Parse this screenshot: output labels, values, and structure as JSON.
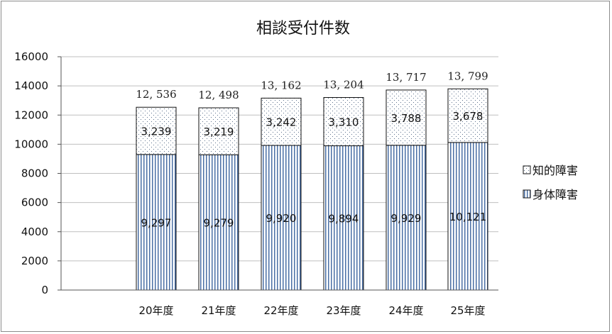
{
  "chart_data": {
    "type": "bar",
    "stacked": true,
    "title": "相談受付件数",
    "xlabel": "",
    "ylabel": "",
    "categories": [
      "20年度",
      "21年度",
      "22年度",
      "23年度",
      "24年度",
      "25年度"
    ],
    "series": [
      {
        "name": "身体障害",
        "values": [
          9297,
          9279,
          9920,
          9894,
          9929,
          10121
        ],
        "labels": [
          "9,297",
          "9,279",
          "9,920",
          "9,894",
          "9,929",
          "10,121"
        ],
        "pattern": "vertical-stripes",
        "color": "#4a6fa5"
      },
      {
        "name": "知的障害",
        "values": [
          3239,
          3219,
          3242,
          3310,
          3788,
          3678
        ],
        "labels": [
          "3,239",
          "3,219",
          "3,242",
          "3,310",
          "3,788",
          "3,678"
        ],
        "pattern": "dots",
        "color": "#5a6f8a"
      }
    ],
    "totals": [
      "12, 536",
      "12, 498",
      "13, 162",
      "13, 204",
      "13, 717",
      "13, 799"
    ],
    "yticks": [
      "0",
      "2000",
      "4000",
      "6000",
      "8000",
      "10000",
      "12000",
      "14000",
      "16000"
    ],
    "ylim": [
      0,
      16000
    ],
    "grid": true,
    "legend_position": "right"
  }
}
